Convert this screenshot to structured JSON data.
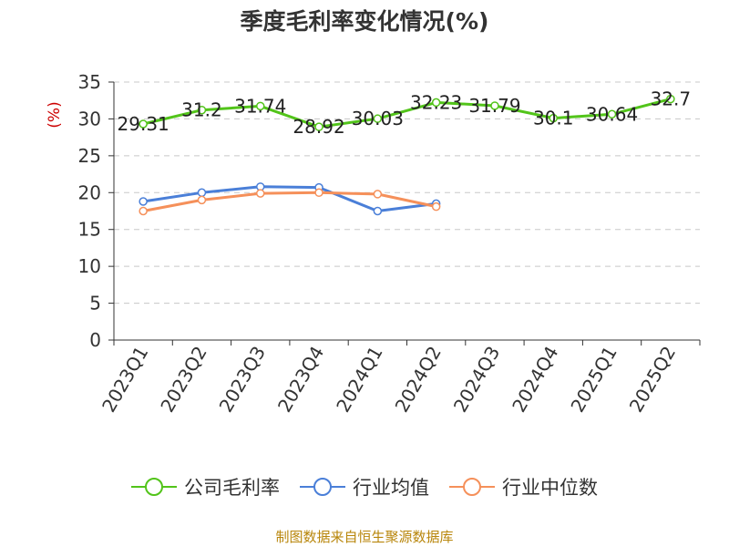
{
  "title": "季度毛利率变化情况(%)",
  "source": "制图数据来自恒生聚源数据库",
  "chart_data": {
    "type": "line",
    "title": "季度毛利率变化情况(%)",
    "ylabel": "(%)",
    "ylim": [
      0,
      35
    ],
    "yticks": [
      0,
      5,
      10,
      15,
      20,
      25,
      30,
      35
    ],
    "grid": true,
    "legend_position": "bottom",
    "categories": [
      "2023Q1",
      "2023Q2",
      "2023Q3",
      "2023Q4",
      "2024Q1",
      "2024Q2",
      "2024Q3",
      "2024Q4",
      "2025Q1",
      "2025Q2"
    ],
    "series": [
      {
        "name": "公司毛利率",
        "color": "#52c41a",
        "values": [
          29.31,
          31.2,
          31.74,
          28.92,
          30.03,
          32.23,
          31.79,
          30.1,
          30.64,
          32.7
        ],
        "labels": [
          "29.31",
          "31.2",
          "31.74",
          "28.92",
          "30.03",
          "32.23",
          "31.79",
          "30.1",
          "30.64",
          "32.7"
        ]
      },
      {
        "name": "行业均值",
        "color": "#4a7fd8",
        "values": [
          18.8,
          20.0,
          20.8,
          20.7,
          17.5,
          18.5,
          null,
          null,
          null,
          null
        ]
      },
      {
        "name": "行业中位数",
        "color": "#f5905a",
        "values": [
          17.5,
          19.0,
          19.9,
          20.0,
          19.8,
          18.1,
          null,
          null,
          null,
          null
        ]
      }
    ]
  }
}
